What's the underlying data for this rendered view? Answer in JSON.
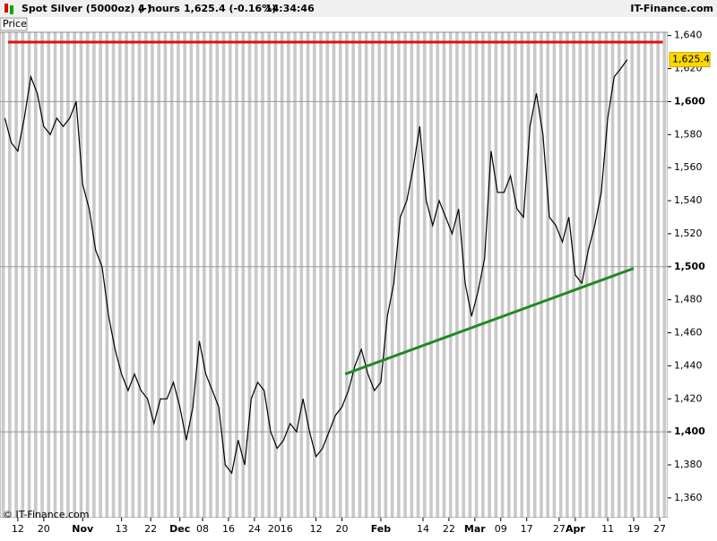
{
  "header": {
    "instrument": "Spot Silver (5000oz) (-)",
    "interval": "4 hours",
    "quote": "1,625.4 (-0.16%)",
    "time": "14:34:46",
    "brand": "IT-Finance.com",
    "tab": "Price",
    "copyright": "© IT-Finance.com"
  },
  "chart_data": {
    "type": "line",
    "x": [
      -4,
      -2,
      0,
      2,
      4,
      6,
      8,
      10,
      12,
      14,
      16,
      18,
      20,
      22,
      24,
      26,
      28,
      30,
      32,
      34,
      36,
      38,
      40,
      42,
      44,
      46,
      48,
      50,
      52,
      54,
      56,
      58,
      60,
      62,
      64,
      66,
      68,
      70,
      72,
      74,
      76,
      78,
      80,
      82,
      84,
      86,
      88,
      90,
      92,
      94,
      96,
      98,
      100,
      102,
      104,
      106,
      108,
      110,
      112,
      114,
      116,
      118,
      120,
      122,
      124,
      126,
      128,
      130,
      132,
      134,
      136,
      138,
      140,
      142,
      144,
      146,
      148,
      150,
      152,
      154,
      156,
      158,
      160,
      162,
      164,
      166,
      168,
      170,
      172,
      174,
      176,
      178,
      180,
      182,
      184,
      186,
      188
    ],
    "series": [
      {
        "color": "#000000",
        "values": [
          1590,
          1575,
          1570,
          1590,
          1615,
          1605,
          1585,
          1580,
          1590,
          1585,
          1590,
          1600,
          1550,
          1535,
          1510,
          1500,
          1470,
          1450,
          1435,
          1425,
          1435,
          1425,
          1420,
          1405,
          1420,
          1420,
          1430,
          1415,
          1395,
          1415,
          1455,
          1435,
          1425,
          1415,
          1380,
          1375,
          1395,
          1380,
          1420,
          1430,
          1425,
          1400,
          1390,
          1395,
          1405,
          1400,
          1420,
          1400,
          1385,
          1390,
          1400,
          1410,
          1415,
          1425,
          1440,
          1450,
          1435,
          1425,
          1430,
          1470,
          1490,
          1530,
          1540,
          1560,
          1585,
          1540,
          1525,
          1540,
          1530,
          1520,
          1535,
          1490,
          1470,
          1485,
          1505,
          1570,
          1545,
          1545,
          1555,
          1535,
          1530,
          1585,
          1605,
          1580,
          1530,
          1525,
          1515,
          1530,
          1495,
          1490,
          1510,
          1525,
          1545,
          1590,
          1615,
          1620,
          1625.4
        ]
      }
    ],
    "xlim": [
      -5.5,
      200.5
    ],
    "xticks": [
      {
        "value": 0,
        "label": "12"
      },
      {
        "value": 8,
        "label": "20"
      },
      {
        "value": 20,
        "label": "Nov"
      },
      {
        "value": 32,
        "label": "13"
      },
      {
        "value": 41,
        "label": "22"
      },
      {
        "value": 50,
        "label": "Dec"
      },
      {
        "value": 57,
        "label": "08"
      },
      {
        "value": 65,
        "label": "16"
      },
      {
        "value": 73,
        "label": "24"
      },
      {
        "value": 81,
        "label": "2016"
      },
      {
        "value": 92,
        "label": "12"
      },
      {
        "value": 100,
        "label": "20"
      },
      {
        "value": 112,
        "label": "Feb"
      },
      {
        "value": 125,
        "label": "14"
      },
      {
        "value": 133,
        "label": "22"
      },
      {
        "value": 141,
        "label": "Mar"
      },
      {
        "value": 149,
        "label": "09"
      },
      {
        "value": 157,
        "label": "17"
      },
      {
        "value": 167,
        "label": "27"
      },
      {
        "value": 172,
        "label": "Apr"
      },
      {
        "value": 182,
        "label": "11"
      },
      {
        "value": 190,
        "label": "19"
      },
      {
        "value": 198,
        "label": "27"
      }
    ],
    "ylim": [
      1348,
      1642
    ],
    "yticks": [
      {
        "value": 1360,
        "label": "1,360"
      },
      {
        "value": 1380,
        "label": "1,380"
      },
      {
        "value": 1400,
        "label": "1,400"
      },
      {
        "value": 1420,
        "label": "1,420"
      },
      {
        "value": 1440,
        "label": "1,440"
      },
      {
        "value": 1460,
        "label": "1,460"
      },
      {
        "value": 1480,
        "label": "1,480"
      },
      {
        "value": 1500,
        "label": "1,500"
      },
      {
        "value": 1520,
        "label": "1,520"
      },
      {
        "value": 1540,
        "label": "1,540"
      },
      {
        "value": 1560,
        "label": "1,560"
      },
      {
        "value": 1580,
        "label": "1,580"
      },
      {
        "value": 1600,
        "label": "1,600"
      },
      {
        "value": 1620,
        "label": "1,620"
      },
      {
        "value": 1640,
        "label": "1,640"
      }
    ],
    "last_price": {
      "value": 1625.4,
      "label": "1,625.4"
    },
    "lines": [
      {
        "color": "#e01010",
        "x": [
          -3,
          199
        ],
        "y": [
          1636,
          1636
        ]
      },
      {
        "color": "#1f8a1f",
        "x": [
          101,
          190
        ],
        "y": [
          1435,
          1499
        ]
      }
    ]
  }
}
